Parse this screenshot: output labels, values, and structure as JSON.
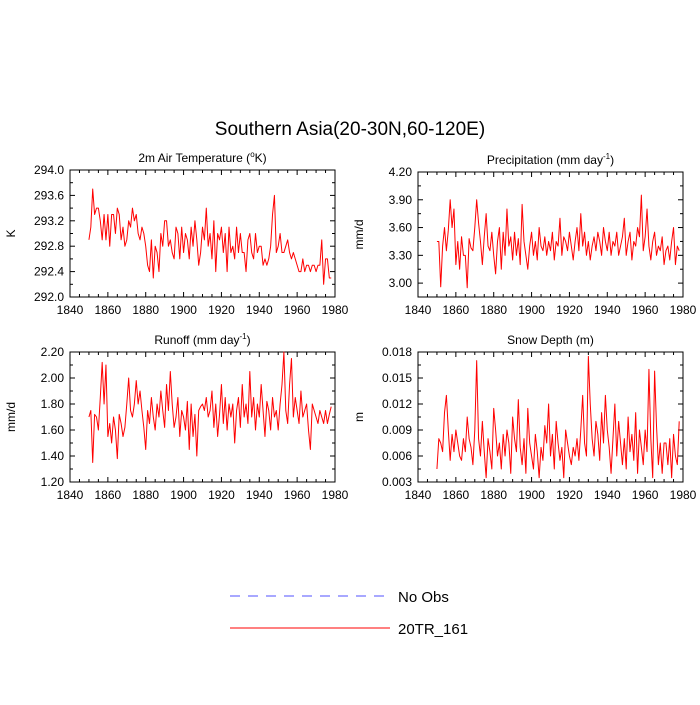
{
  "page_title": "Southern Asia(20-30N,60-120E)",
  "colors": {
    "model": "#ff0000",
    "obs": "#5050ff",
    "axis": "#000000"
  },
  "legend": {
    "obs_label": "No Obs",
    "model_label": "20TR_161"
  },
  "chart_data": [
    {
      "type": "line",
      "title_main": "2m Air Temperature (",
      "title_sup": "o",
      "title_tail": "K)",
      "ylabel": "K",
      "xlim": [
        1840,
        1980
      ],
      "ylim": [
        292.0,
        294.0
      ],
      "yticks": [
        "294.0",
        "293.6",
        "293.2",
        "292.8",
        "292.4",
        "292.0"
      ],
      "xticks": [
        "1840",
        "1860",
        "1880",
        "1900",
        "1920",
        "1940",
        "1960",
        "1980"
      ],
      "series": [
        {
          "name": "20TR_161",
          "x_start": 1850,
          "values": [
            292.9,
            293.1,
            293.7,
            293.3,
            293.4,
            293.4,
            293.2,
            292.9,
            293.3,
            292.9,
            293.3,
            292.8,
            293.3,
            293.3,
            293.0,
            293.4,
            293.3,
            292.9,
            293.1,
            292.8,
            292.9,
            293.2,
            293.1,
            293.4,
            293.2,
            293.3,
            293.0,
            292.9,
            293.1,
            293.0,
            292.8,
            292.5,
            292.4,
            292.9,
            292.3,
            292.8,
            292.7,
            292.4,
            293.0,
            292.8,
            293.2,
            293.2,
            292.8,
            292.9,
            292.7,
            292.6,
            293.1,
            293.0,
            292.6,
            293.1,
            292.7,
            293.0,
            292.9,
            292.6,
            293.1,
            292.8,
            293.2,
            292.9,
            292.5,
            292.7,
            293.1,
            292.9,
            293.4,
            292.8,
            293.0,
            292.6,
            293.2,
            292.4,
            293.0,
            292.9,
            293.1,
            292.7,
            293.0,
            292.4,
            293.1,
            292.7,
            292.8,
            292.6,
            293.1,
            292.7,
            293.0,
            292.7,
            292.7,
            292.4,
            292.9,
            293.0,
            292.7,
            292.6,
            293.0,
            292.7,
            292.8,
            292.8,
            292.5,
            292.6,
            292.5,
            292.6,
            292.8,
            293.3,
            293.6,
            292.7,
            292.8,
            293.0,
            292.7,
            292.7,
            292.8,
            292.9,
            292.7,
            292.6,
            292.7,
            292.6,
            292.5,
            292.4,
            292.4,
            292.6,
            292.4,
            292.5,
            292.5,
            292.4,
            292.5,
            292.5,
            292.4,
            292.5,
            292.5,
            292.9,
            292.2,
            292.6,
            292.6,
            292.3,
            292.3
          ]
        }
      ]
    },
    {
      "type": "line",
      "title_main": "Precipitation (mm day",
      "title_sup": "-1",
      "title_tail": ")",
      "ylabel": "mm/d",
      "xlim": [
        1840,
        1980
      ],
      "ylim": [
        2.85,
        4.2
      ],
      "yticks": [
        "4.20",
        "3.90",
        "3.60",
        "3.30",
        "3.00"
      ],
      "xticks": [
        "1840",
        "1860",
        "1880",
        "1900",
        "1920",
        "1940",
        "1960",
        "1980"
      ],
      "series": [
        {
          "name": "20TR_161",
          "x_start": 1850,
          "values": [
            3.45,
            3.45,
            2.96,
            3.4,
            3.6,
            3.35,
            3.57,
            3.9,
            3.6,
            3.8,
            3.2,
            3.45,
            3.15,
            3.5,
            3.3,
            3.3,
            2.95,
            3.48,
            3.38,
            3.35,
            3.6,
            3.9,
            3.65,
            3.45,
            3.2,
            3.5,
            3.75,
            3.4,
            3.35,
            3.55,
            3.3,
            3.1,
            3.45,
            3.6,
            3.15,
            3.55,
            3.3,
            3.8,
            3.4,
            3.5,
            3.25,
            3.55,
            3.3,
            3.48,
            3.2,
            3.85,
            3.45,
            3.3,
            3.15,
            3.4,
            3.55,
            3.3,
            3.45,
            3.25,
            3.6,
            3.4,
            3.35,
            3.5,
            3.3,
            3.45,
            3.35,
            3.55,
            3.25,
            3.45,
            3.4,
            3.7,
            3.3,
            3.5,
            3.45,
            3.35,
            3.55,
            3.4,
            3.25,
            3.45,
            3.6,
            3.35,
            3.75,
            3.4,
            3.55,
            3.3,
            3.45,
            3.25,
            3.4,
            3.5,
            3.35,
            3.55,
            3.45,
            3.3,
            3.6,
            3.45,
            3.35,
            3.55,
            3.3,
            3.45,
            3.4,
            3.55,
            3.3,
            3.4,
            3.5,
            3.7,
            3.3,
            3.45,
            3.55,
            3.25,
            3.45,
            3.4,
            3.6,
            3.5,
            3.95,
            3.35,
            3.5,
            3.8,
            3.4,
            3.25,
            3.45,
            3.55,
            3.3,
            3.4,
            3.35,
            3.5,
            3.2,
            3.35,
            3.4,
            3.25,
            3.45,
            3.6,
            3.2,
            3.4,
            3.35
          ]
        }
      ]
    },
    {
      "type": "line",
      "title_main": "Runoff (mm day",
      "title_sup": "-1",
      "title_tail": ")",
      "ylabel": "mm/d",
      "xlim": [
        1840,
        1980
      ],
      "ylim": [
        1.2,
        2.2
      ],
      "yticks": [
        "2.20",
        "2.00",
        "1.80",
        "1.60",
        "1.40",
        "1.20"
      ],
      "xticks": [
        "1840",
        "1860",
        "1880",
        "1900",
        "1920",
        "1940",
        "1960",
        "1980"
      ],
      "series": [
        {
          "name": "20TR_161",
          "x_start": 1850,
          "values": [
            1.7,
            1.75,
            1.35,
            1.72,
            1.7,
            1.6,
            1.85,
            2.12,
            1.8,
            2.1,
            1.55,
            1.65,
            1.5,
            1.7,
            1.6,
            1.38,
            1.72,
            1.65,
            1.55,
            1.62,
            1.8,
            2.0,
            1.75,
            1.7,
            1.8,
            1.98,
            1.8,
            1.9,
            1.75,
            1.62,
            1.45,
            1.75,
            1.65,
            1.85,
            1.7,
            1.6,
            1.8,
            1.7,
            1.9,
            1.75,
            1.62,
            1.95,
            1.75,
            2.05,
            1.8,
            1.62,
            1.7,
            1.85,
            1.55,
            1.75,
            1.7,
            1.6,
            1.82,
            1.45,
            1.8,
            1.55,
            1.72,
            1.4,
            1.75,
            1.78,
            1.8,
            1.75,
            1.85,
            1.7,
            1.75,
            1.9,
            1.62,
            1.8,
            1.55,
            1.72,
            1.95,
            1.65,
            1.85,
            1.6,
            1.8,
            1.7,
            1.8,
            1.5,
            1.75,
            1.85,
            1.62,
            1.95,
            1.7,
            1.8,
            1.65,
            2.05,
            1.7,
            1.85,
            1.6,
            1.8,
            1.7,
            1.95,
            1.75,
            1.55,
            1.82,
            1.75,
            1.6,
            1.85,
            1.7,
            1.75,
            1.6,
            1.8,
            1.95,
            2.2,
            1.75,
            1.65,
            1.95,
            2.15,
            1.7,
            1.85,
            1.75,
            1.65,
            1.9,
            1.7,
            1.75,
            1.8,
            1.6,
            1.45,
            1.8,
            1.75,
            1.7,
            1.65,
            1.75,
            1.7,
            1.65,
            1.75,
            1.65,
            1.72,
            1.78
          ]
        }
      ]
    },
    {
      "type": "line",
      "title_main": "Snow Depth (m)",
      "title_sup": "",
      "title_tail": "",
      "ylabel": "m",
      "xlim": [
        1840,
        1980
      ],
      "ylim": [
        0.003,
        0.018
      ],
      "yticks": [
        "0.018",
        "0.015",
        "0.012",
        "0.009",
        "0.006",
        "0.003"
      ],
      "xticks": [
        "1840",
        "1860",
        "1880",
        "1900",
        "1920",
        "1940",
        "1960",
        "1980"
      ],
      "series": [
        {
          "name": "20TR_161",
          "x_start": 1850,
          "values": [
            0.0045,
            0.008,
            0.0075,
            0.0065,
            0.011,
            0.013,
            0.009,
            0.0055,
            0.0085,
            0.0065,
            0.009,
            0.0075,
            0.006,
            0.0055,
            0.008,
            0.0065,
            0.0105,
            0.008,
            0.007,
            0.005,
            0.009,
            0.017,
            0.008,
            0.006,
            0.01,
            0.0065,
            0.0035,
            0.008,
            0.0065,
            0.0045,
            0.0115,
            0.009,
            0.006,
            0.0075,
            0.0045,
            0.0085,
            0.006,
            0.009,
            0.0075,
            0.004,
            0.0105,
            0.008,
            0.0065,
            0.0125,
            0.007,
            0.005,
            0.008,
            0.004,
            0.0115,
            0.0075,
            0.006,
            0.0045,
            0.0085,
            0.0065,
            0.0035,
            0.007,
            0.0055,
            0.0095,
            0.0075,
            0.012,
            0.006,
            0.0085,
            0.0045,
            0.01,
            0.0075,
            0.0055,
            0.007,
            0.0035,
            0.009,
            0.0075,
            0.006,
            0.005,
            0.007,
            0.006,
            0.008,
            0.0055,
            0.009,
            0.013,
            0.0075,
            0.006,
            0.0175,
            0.012,
            0.008,
            0.006,
            0.01,
            0.0085,
            0.0055,
            0.011,
            0.0075,
            0.013,
            0.009,
            0.007,
            0.004,
            0.008,
            0.012,
            0.006,
            0.01,
            0.0075,
            0.005,
            0.008,
            0.0045,
            0.0105,
            0.0065,
            0.0085,
            0.0055,
            0.011,
            0.004,
            0.009,
            0.007,
            0.005,
            0.009,
            0.0065,
            0.016,
            0.008,
            0.0035,
            0.0158,
            0.0095,
            0.005,
            0.0075,
            0.004,
            0.0075,
            0.0075,
            0.005,
            0.008,
            0.0035,
            0.0085,
            0.006,
            0.005,
            0.01
          ]
        }
      ]
    }
  ]
}
